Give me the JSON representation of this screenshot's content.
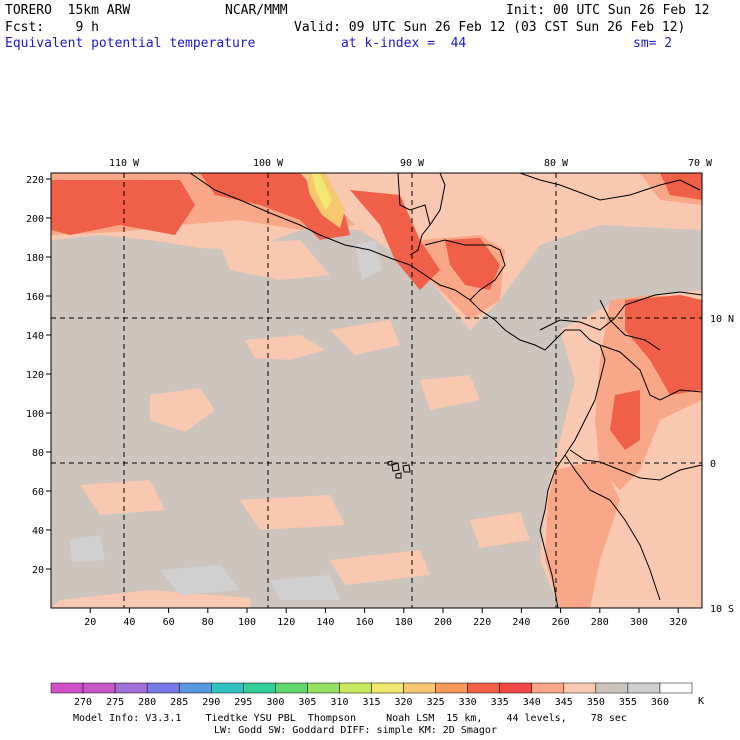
{
  "header": {
    "model": "TORERO  15km ARW",
    "org": "NCAR/MMM",
    "init": "Init: 00 UTC Sun 26 Feb 12",
    "fcst": "Fcst:    9 h",
    "valid": "Valid: 09 UTC Sun 26 Feb 12 (03 CST Sun 26 Feb 12)",
    "field": "Equivalent potential temperature",
    "level": "at k-index =  44",
    "smooth": "sm= 2"
  },
  "map": {
    "lon_labels": [
      "110 W",
      "100 W",
      "90 W",
      "80 W",
      "70 W"
    ],
    "lat_labels": [
      "10 N",
      "0",
      "10 S"
    ],
    "y_ticks": [
      "20",
      "40",
      "60",
      "80",
      "100",
      "120",
      "140",
      "160",
      "180",
      "200",
      "220"
    ],
    "x_ticks": [
      "20",
      "40",
      "60",
      "80",
      "100",
      "120",
      "140",
      "160",
      "180",
      "200",
      "220",
      "240",
      "260",
      "280",
      "300",
      "320"
    ],
    "ocean_color": "#cdc5bd",
    "land_outline_color": "#000000"
  },
  "colorbar": {
    "labels": [
      "270",
      "275",
      "280",
      "285",
      "290",
      "295",
      "300",
      "305",
      "310",
      "315",
      "320",
      "325",
      "330",
      "335",
      "340",
      "345",
      "350",
      "355",
      "360"
    ],
    "unit": "K",
    "colors": [
      "#c858c8",
      "#a070d8",
      "#7878e8",
      "#5898e0",
      "#30c0c0",
      "#30d098",
      "#60d870",
      "#98e060",
      "#c8e860",
      "#f0e870",
      "#f8c870",
      "#f89858",
      "#f06048",
      "#f04848",
      "#f8a888",
      "#f8c8b0",
      "#cdc5bd",
      "#d0d0d0",
      "#ffffff"
    ]
  },
  "footer": {
    "line1": "Model Info: V3.3.1    Tiedtke YSU PBL  Thompson     Noah LSM  15 km,    44 levels,    78 sec",
    "line2": "LW: Godd SW: Goddard DIFF: simple KM: 2D Smagor"
  }
}
